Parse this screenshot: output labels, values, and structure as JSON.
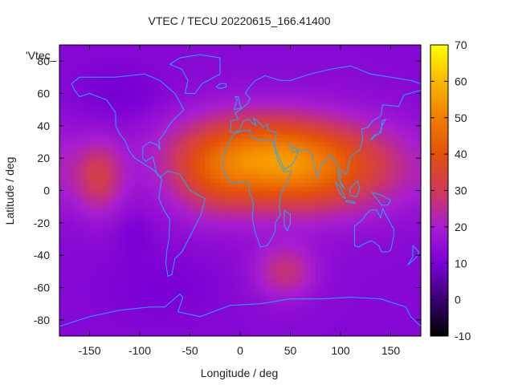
{
  "chart_data": {
    "type": "heatmap",
    "title": "VTEC / TECU 20220615_166.41400",
    "xlabel": "Longitude / deg",
    "ylabel": "Latitude / deg",
    "legend_label": "'Vtec_",
    "xlim": [
      -180,
      180
    ],
    "ylim": [
      -90,
      90
    ],
    "x_ticks": [
      -150,
      -100,
      -50,
      0,
      50,
      100,
      150
    ],
    "y_ticks": [
      -80,
      -60,
      -40,
      -20,
      0,
      20,
      40,
      60,
      80
    ],
    "colorbar": {
      "range": [
        -10,
        70
      ],
      "ticks": [
        -10,
        0,
        10,
        20,
        30,
        40,
        50,
        60,
        70
      ],
      "colors": [
        "#000000",
        "#3a006f",
        "#7a00d6",
        "#a81dd0",
        "#cf3a56",
        "#e4500a",
        "#f07e00",
        "#fab800",
        "#ffff00"
      ]
    },
    "grid": false,
    "features": [
      {
        "name": "background",
        "lon": 0,
        "lat": 0,
        "sigma_lon": 1000,
        "sigma_lat": 1000,
        "value": 13
      },
      {
        "name": "main crest",
        "lon": 60,
        "lat": 15,
        "sigma_lon": 70,
        "sigma_lat": 20,
        "value": 34
      },
      {
        "name": "north-africa anomaly",
        "lon": 0,
        "lat": 25,
        "sigma_lon": 55,
        "sigma_lat": 18,
        "value": 14
      },
      {
        "name": "atlantic crest",
        "lon": -30,
        "lat": 5,
        "sigma_lon": 28,
        "sigma_lat": 18,
        "value": 8
      },
      {
        "name": "pacific blob",
        "lon": -140,
        "lat": 8,
        "sigma_lon": 18,
        "sigma_lat": 16,
        "value": 16
      },
      {
        "name": "southern anomaly",
        "lon": 45,
        "lat": -50,
        "sigma_lon": 22,
        "sigma_lat": 12,
        "value": 14
      },
      {
        "name": "antarctic low",
        "lon": -80,
        "lat": -60,
        "sigma_lon": 40,
        "sigma_lat": 15,
        "value": -3
      },
      {
        "name": "pacific low",
        "lon": -105,
        "lat": -28,
        "sigma_lon": 12,
        "sigma_lat": 10,
        "value": -3
      },
      {
        "name": "north pacific low",
        "lon": -120,
        "lat": 60,
        "sigma_lon": 30,
        "sigma_lat": 12,
        "value": -4
      }
    ],
    "coastlines": [
      {
        "name": "north-america",
        "points": [
          [
            -168,
            66
          ],
          [
            -160,
            70
          ],
          [
            -140,
            70
          ],
          [
            -125,
            70
          ],
          [
            -95,
            72
          ],
          [
            -80,
            68
          ],
          [
            -65,
            60
          ],
          [
            -56,
            50
          ],
          [
            -66,
            44
          ],
          [
            -70,
            41
          ],
          [
            -76,
            35
          ],
          [
            -81,
            31
          ],
          [
            -80,
            25
          ],
          [
            -82,
            28
          ],
          [
            -90,
            30
          ],
          [
            -97,
            27
          ],
          [
            -97,
            20
          ],
          [
            -94,
            18
          ],
          [
            -87,
            21
          ],
          [
            -83,
            10
          ],
          [
            -79,
            8
          ],
          [
            -85,
            12
          ],
          [
            -92,
            15
          ],
          [
            -105,
            20
          ],
          [
            -110,
            24
          ],
          [
            -115,
            31
          ],
          [
            -120,
            35
          ],
          [
            -124,
            40
          ],
          [
            -124,
            48
          ],
          [
            -133,
            56
          ],
          [
            -150,
            60
          ],
          [
            -160,
            58
          ],
          [
            -165,
            62
          ],
          [
            -168,
            66
          ]
        ]
      },
      {
        "name": "greenland",
        "points": [
          [
            -55,
            60
          ],
          [
            -45,
            60
          ],
          [
            -38,
            66
          ],
          [
            -20,
            72
          ],
          [
            -20,
            82
          ],
          [
            -40,
            84
          ],
          [
            -60,
            82
          ],
          [
            -70,
            78
          ],
          [
            -58,
            75
          ],
          [
            -52,
            68
          ],
          [
            -55,
            60
          ]
        ]
      },
      {
        "name": "south-america",
        "points": [
          [
            -80,
            8
          ],
          [
            -72,
            12
          ],
          [
            -60,
            10
          ],
          [
            -50,
            0
          ],
          [
            -35,
            -5
          ],
          [
            -39,
            -15
          ],
          [
            -48,
            -26
          ],
          [
            -58,
            -38
          ],
          [
            -65,
            -42
          ],
          [
            -68,
            -52
          ],
          [
            -72,
            -53
          ],
          [
            -74,
            -45
          ],
          [
            -73,
            -37
          ],
          [
            -71,
            -30
          ],
          [
            -70,
            -18
          ],
          [
            -76,
            -12
          ],
          [
            -81,
            -5
          ],
          [
            -80,
            0
          ],
          [
            -78,
            7
          ],
          [
            -80,
            8
          ]
        ]
      },
      {
        "name": "eurasia",
        "points": [
          [
            -10,
            36
          ],
          [
            -9,
            43
          ],
          [
            -2,
            44
          ],
          [
            -5,
            48
          ],
          [
            0,
            50
          ],
          [
            8,
            54
          ],
          [
            10,
            57
          ],
          [
            5,
            60
          ],
          [
            8,
            63
          ],
          [
            15,
            68
          ],
          [
            25,
            71
          ],
          [
            40,
            68
          ],
          [
            50,
            68
          ],
          [
            70,
            72
          ],
          [
            90,
            75
          ],
          [
            110,
            77
          ],
          [
            130,
            72
          ],
          [
            150,
            70
          ],
          [
            170,
            68
          ],
          [
            180,
            66
          ],
          [
            180,
            62
          ],
          [
            163,
            59
          ],
          [
            158,
            52
          ],
          [
            142,
            53
          ],
          [
            140,
            46
          ],
          [
            132,
            43
          ],
          [
            127,
            39
          ],
          [
            121,
            38
          ],
          [
            122,
            31
          ],
          [
            119,
            25
          ],
          [
            110,
            21
          ],
          [
            108,
            16
          ],
          [
            106,
            10
          ],
          [
            100,
            13
          ],
          [
            100,
            4
          ],
          [
            104,
            1
          ],
          [
            98,
            8
          ],
          [
            98,
            16
          ],
          [
            94,
            18
          ],
          [
            91,
            22
          ],
          [
            86,
            20
          ],
          [
            80,
            15
          ],
          [
            77,
            8
          ],
          [
            73,
            17
          ],
          [
            72,
            22
          ],
          [
            66,
            25
          ],
          [
            58,
            25
          ],
          [
            57,
            22
          ],
          [
            52,
            16
          ],
          [
            44,
            13
          ],
          [
            39,
            20
          ],
          [
            34,
            28
          ],
          [
            35,
            31
          ],
          [
            36,
            36
          ],
          [
            28,
            37
          ],
          [
            27,
            41
          ],
          [
            23,
            39
          ],
          [
            19,
            42
          ],
          [
            13,
            45
          ],
          [
            16,
            40
          ],
          [
            12,
            42
          ],
          [
            9,
            44
          ],
          [
            3,
            43
          ],
          [
            -1,
            37
          ],
          [
            -5,
            36
          ],
          [
            -10,
            36
          ]
        ]
      },
      {
        "name": "africa",
        "points": [
          [
            -17,
            21
          ],
          [
            -13,
            28
          ],
          [
            -9,
            32
          ],
          [
            -6,
            35
          ],
          [
            3,
            37
          ],
          [
            10,
            37
          ],
          [
            11,
            33
          ],
          [
            20,
            31
          ],
          [
            30,
            31
          ],
          [
            33,
            30
          ],
          [
            34,
            27
          ],
          [
            38,
            18
          ],
          [
            43,
            12
          ],
          [
            51,
            12
          ],
          [
            45,
            3
          ],
          [
            40,
            -3
          ],
          [
            39,
            -10
          ],
          [
            40,
            -15
          ],
          [
            35,
            -20
          ],
          [
            35,
            -25
          ],
          [
            32,
            -29
          ],
          [
            27,
            -34
          ],
          [
            20,
            -35
          ],
          [
            18,
            -31
          ],
          [
            15,
            -26
          ],
          [
            12,
            -17
          ],
          [
            13,
            -9
          ],
          [
            12,
            -5
          ],
          [
            9,
            -1
          ],
          [
            9,
            4
          ],
          [
            5,
            5
          ],
          [
            -4,
            5
          ],
          [
            -8,
            4
          ],
          [
            -13,
            8
          ],
          [
            -17,
            13
          ],
          [
            -17,
            21
          ]
        ]
      },
      {
        "name": "madagascar",
        "points": [
          [
            44,
            -12
          ],
          [
            50,
            -15
          ],
          [
            50,
            -20
          ],
          [
            47,
            -25
          ],
          [
            44,
            -22
          ],
          [
            44,
            -12
          ]
        ]
      },
      {
        "name": "arabia-gulf",
        "points": [
          [
            48,
            30
          ],
          [
            50,
            27
          ],
          [
            56,
            26
          ],
          [
            57,
            24
          ],
          [
            52,
            24
          ],
          [
            48,
            30
          ]
        ]
      },
      {
        "name": "uk",
        "points": [
          [
            -6,
            50
          ],
          [
            -5,
            52
          ],
          [
            -3,
            56
          ],
          [
            -5,
            58
          ],
          [
            -2,
            58
          ],
          [
            0,
            53
          ],
          [
            1,
            51
          ],
          [
            -6,
            50
          ]
        ]
      },
      {
        "name": "japan",
        "points": [
          [
            130,
            31
          ],
          [
            133,
            34
          ],
          [
            138,
            35
          ],
          [
            141,
            38
          ],
          [
            141,
            43
          ],
          [
            145,
            44
          ],
          [
            141,
            40
          ],
          [
            140,
            36
          ],
          [
            135,
            34
          ],
          [
            130,
            31
          ]
        ]
      },
      {
        "name": "australia",
        "points": [
          [
            114,
            -22
          ],
          [
            114,
            -34
          ],
          [
            118,
            -35
          ],
          [
            123,
            -33
          ],
          [
            131,
            -31
          ],
          [
            138,
            -34
          ],
          [
            141,
            -38
          ],
          [
            147,
            -38
          ],
          [
            150,
            -37
          ],
          [
            153,
            -28
          ],
          [
            153,
            -24
          ],
          [
            145,
            -15
          ],
          [
            142,
            -11
          ],
          [
            140,
            -17
          ],
          [
            136,
            -12
          ],
          [
            130,
            -12
          ],
          [
            125,
            -15
          ],
          [
            122,
            -18
          ],
          [
            114,
            -22
          ]
        ]
      },
      {
        "name": "indonesia-1",
        "points": [
          [
            95,
            5
          ],
          [
            100,
            2
          ],
          [
            105,
            -5
          ],
          [
            102,
            -4
          ],
          [
            97,
            1
          ],
          [
            95,
            5
          ]
        ]
      },
      {
        "name": "indonesia-2",
        "points": [
          [
            106,
            -6
          ],
          [
            114,
            -7
          ],
          [
            114,
            -8
          ],
          [
            106,
            -7
          ],
          [
            106,
            -6
          ]
        ]
      },
      {
        "name": "borneo",
        "points": [
          [
            109,
            1
          ],
          [
            117,
            6
          ],
          [
            119,
            1
          ],
          [
            116,
            -4
          ],
          [
            110,
            -3
          ],
          [
            109,
            1
          ]
        ]
      },
      {
        "name": "new-guinea",
        "points": [
          [
            131,
            -1
          ],
          [
            141,
            -3
          ],
          [
            150,
            -6
          ],
          [
            147,
            -9
          ],
          [
            141,
            -9
          ],
          [
            131,
            -1
          ]
        ]
      },
      {
        "name": "new-zealand",
        "points": [
          [
            172,
            -34
          ],
          [
            178,
            -38
          ],
          [
            176,
            -41
          ],
          [
            171,
            -44
          ],
          [
            167,
            -46
          ],
          [
            172,
            -41
          ],
          [
            172,
            -34
          ]
        ]
      },
      {
        "name": "antarctica",
        "points": [
          [
            -180,
            -84
          ],
          [
            -150,
            -78
          ],
          [
            -120,
            -74
          ],
          [
            -90,
            -72
          ],
          [
            -75,
            -72
          ],
          [
            -60,
            -64
          ],
          [
            -57,
            -66
          ],
          [
            -62,
            -75
          ],
          [
            -40,
            -78
          ],
          [
            -10,
            -71
          ],
          [
            20,
            -70
          ],
          [
            50,
            -67
          ],
          [
            80,
            -67
          ],
          [
            110,
            -66
          ],
          [
            140,
            -67
          ],
          [
            165,
            -72
          ],
          [
            170,
            -78
          ],
          [
            180,
            -84
          ]
        ]
      },
      {
        "name": "iceland",
        "points": [
          [
            -24,
            64
          ],
          [
            -20,
            66
          ],
          [
            -14,
            66
          ],
          [
            -14,
            64
          ],
          [
            -20,
            63
          ],
          [
            -24,
            64
          ]
        ]
      }
    ]
  }
}
